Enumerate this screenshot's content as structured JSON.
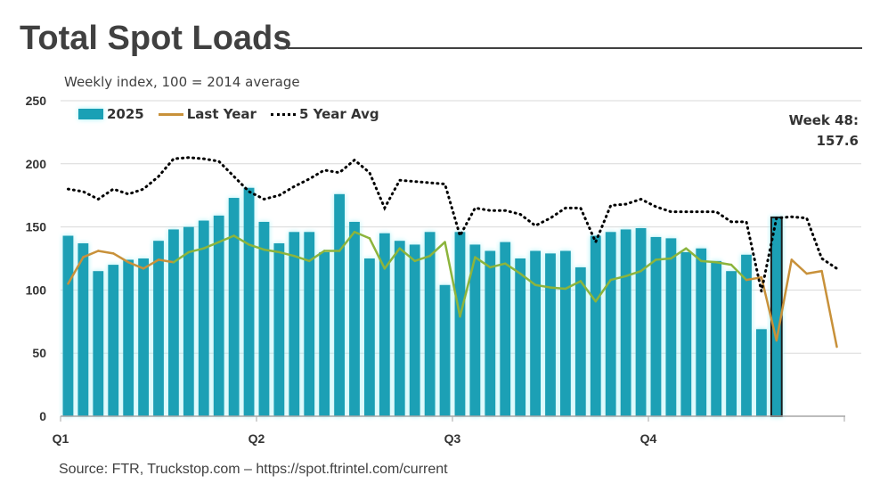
{
  "title": "Total Spot Loads",
  "subtitle": "Weekly index, 100 = 2014 average",
  "source": "Source: FTR, Truckstop.com – https://spot.ftrintel.com/current",
  "callout": {
    "line1": "Week 48:",
    "line2": "157.6"
  },
  "colors": {
    "bars": "#1aa0b5",
    "bar_glow": "#a7f2f7",
    "last_year": "#c8913a",
    "last_year_late": "#8cb43c",
    "five_year": "#000000",
    "highlight_outline": "#1a1a1a"
  },
  "chart_data": {
    "type": "bar",
    "ylim": [
      0,
      250
    ],
    "y_ticks": [
      "0",
      "50",
      "100",
      "150",
      "200",
      "250"
    ],
    "y_tick_values": [
      0,
      50,
      100,
      150,
      200,
      250
    ],
    "x_tick_labels": [
      "Q1",
      "Q2",
      "Q3",
      "Q4"
    ],
    "x_tick_weeks": [
      1,
      14,
      27,
      40
    ],
    "highlight_week": 48,
    "grid": true,
    "legend_position": "top-left",
    "weeks": [
      1,
      2,
      3,
      4,
      5,
      6,
      7,
      8,
      9,
      10,
      11,
      12,
      13,
      14,
      15,
      16,
      17,
      18,
      19,
      20,
      21,
      22,
      23,
      24,
      25,
      26,
      27,
      28,
      29,
      30,
      31,
      32,
      33,
      34,
      35,
      36,
      37,
      38,
      39,
      40,
      41,
      42,
      43,
      44,
      45,
      46,
      47,
      48,
      49,
      50,
      51,
      52
    ],
    "series": [
      {
        "name": "2025",
        "kind": "bar",
        "values": [
          143,
          137,
          115,
          120,
          124,
          125,
          139,
          148,
          150,
          155,
          159,
          173,
          181,
          154,
          137,
          146,
          146,
          130,
          176,
          154,
          125,
          145,
          139,
          136,
          146,
          104,
          146,
          136,
          131,
          138,
          125,
          131,
          129,
          131,
          118,
          143,
          146,
          148,
          149,
          142,
          141,
          130,
          133,
          123,
          115,
          128,
          69,
          157.6
        ]
      },
      {
        "name": "Last Year",
        "kind": "line",
        "values": [
          105,
          126,
          131,
          129,
          122,
          117,
          124,
          122,
          130,
          133,
          138,
          143,
          136,
          132,
          130,
          127,
          123,
          131,
          131,
          146,
          141,
          117,
          133,
          123,
          127,
          138,
          79,
          126,
          118,
          121,
          113,
          104,
          102,
          101,
          107,
          91,
          108,
          111,
          115,
          124,
          125,
          133,
          123,
          122,
          120,
          108,
          110,
          60,
          124,
          113,
          115,
          55
        ]
      },
      {
        "name": "5 Year Avg",
        "kind": "dotted",
        "values": [
          180,
          178,
          172,
          180,
          176,
          180,
          190,
          204,
          205,
          204,
          202,
          190,
          178,
          172,
          175,
          182,
          188,
          195,
          193,
          203,
          193,
          165,
          187,
          186,
          185,
          184,
          143,
          165,
          163,
          163,
          160,
          151,
          157,
          165,
          165,
          138,
          167,
          168,
          172,
          166,
          162,
          162,
          162,
          162,
          154,
          154,
          99,
          157,
          158,
          157,
          125,
          117
        ]
      }
    ]
  }
}
